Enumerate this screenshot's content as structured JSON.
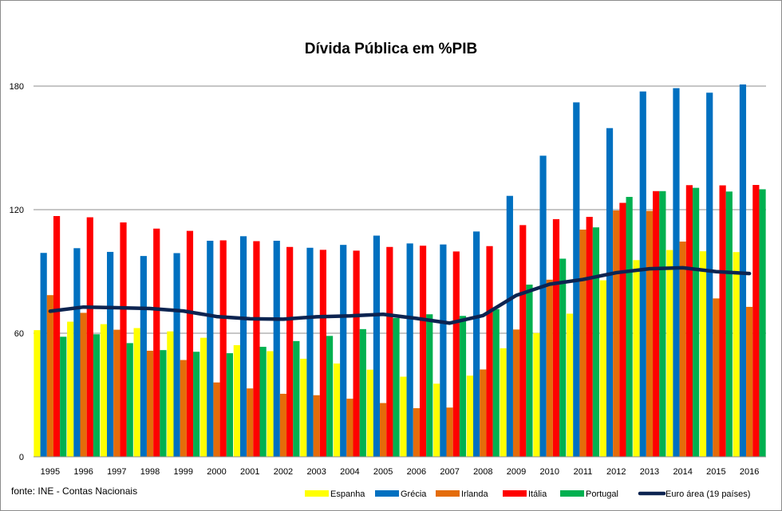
{
  "chart_data": {
    "type": "bar",
    "title": "Dívida Pública em %PIB",
    "source": "fonte: INE - Contas Nacionais",
    "categories": [
      "1995",
      "1996",
      "1997",
      "1998",
      "1999",
      "2000",
      "2001",
      "2002",
      "2003",
      "2004",
      "2005",
      "2006",
      "2007",
      "2008",
      "2009",
      "2010",
      "2011",
      "2012",
      "2013",
      "2014",
      "2015",
      "2016"
    ],
    "ylim": [
      0,
      180
    ],
    "yticks": [
      0,
      60,
      120,
      180
    ],
    "grid": true,
    "legend_position": "bottom",
    "series": [
      {
        "name": "Espanha",
        "type": "bar",
        "color": "#ffff00",
        "values": [
          61.5,
          65.6,
          64.4,
          62.5,
          60.9,
          57.8,
          54.2,
          51.3,
          47.6,
          45.3,
          42.3,
          38.9,
          35.5,
          39.4,
          52.7,
          60.1,
          69.5,
          85.7,
          95.5,
          100.4,
          99.8,
          99.4
        ]
      },
      {
        "name": "Grécia",
        "type": "bar",
        "color": "#0070c0",
        "values": [
          99.0,
          101.3,
          99.5,
          97.5,
          98.9,
          104.9,
          107.1,
          104.9,
          101.5,
          102.9,
          107.4,
          103.6,
          103.1,
          109.4,
          126.7,
          146.2,
          172.1,
          159.6,
          177.4,
          179.0,
          176.8,
          180.8
        ]
      },
      {
        "name": "Irlanda",
        "type": "bar",
        "color": "#e46c0a",
        "values": [
          78.5,
          69.9,
          61.7,
          51.5,
          47.0,
          36.1,
          33.2,
          30.6,
          29.9,
          28.2,
          26.1,
          23.6,
          23.9,
          42.4,
          61.8,
          86.0,
          110.3,
          119.6,
          119.4,
          104.5,
          76.9,
          72.8
        ]
      },
      {
        "name": "Itália",
        "type": "bar",
        "color": "#ff0000",
        "values": [
          116.9,
          116.3,
          113.8,
          110.8,
          109.7,
          105.1,
          104.7,
          101.9,
          100.5,
          100.1,
          101.9,
          102.5,
          99.7,
          102.3,
          112.5,
          115.4,
          116.5,
          123.3,
          129.0,
          131.9,
          131.8,
          132.0
        ]
      },
      {
        "name": "Portugal",
        "type": "bar",
        "color": "#00b050",
        "values": [
          58.3,
          59.5,
          55.2,
          51.8,
          51.0,
          50.3,
          53.4,
          56.2,
          58.7,
          62.0,
          67.4,
          69.2,
          68.4,
          71.7,
          83.6,
          96.2,
          111.4,
          126.2,
          129.0,
          130.6,
          128.8,
          129.9
        ]
      },
      {
        "name": "Euro área (19 países)",
        "type": "line",
        "color": "#0d2451",
        "values": [
          70.7,
          72.7,
          72.4,
          72.0,
          70.8,
          68.1,
          67.0,
          66.8,
          68.0,
          68.4,
          69.2,
          67.2,
          64.9,
          68.6,
          78.4,
          83.8,
          86.1,
          89.4,
          91.3,
          91.8,
          89.9,
          89.0
        ]
      }
    ]
  }
}
